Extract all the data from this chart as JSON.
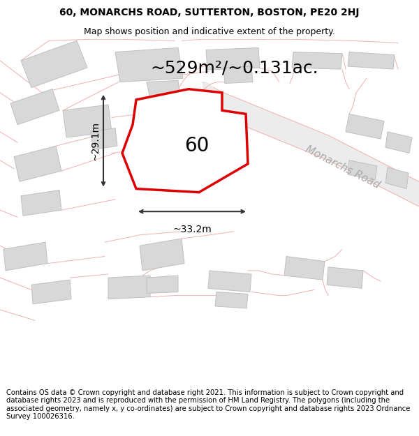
{
  "title_line1": "60, MONARCHS ROAD, SUTTERTON, BOSTON, PE20 2HJ",
  "title_line2": "Map shows position and indicative extent of the property.",
  "footer_text": "Contains OS data © Crown copyright and database right 2021. This information is subject to Crown copyright and database rights 2023 and is reproduced with the permission of HM Land Registry. The polygons (including the associated geometry, namely x, y co-ordinates) are subject to Crown copyright and database rights 2023 Ordnance Survey 100026316.",
  "area_label": "~529m²/~0.131ac.",
  "width_label": "~33.2m",
  "height_label": "~29.1m",
  "number_label": "60",
  "monarchs_road_label": "Monarchs Road",
  "plot_border_color": "#dd0000",
  "building_fill_color": "#d8d8d8",
  "building_edge_color": "#c0c0c0",
  "road_line_color": "#f0b0b0",
  "road_fill_color": "#ececec",
  "map_bg_color": "#f8f5f5",
  "dim_line_color": "#333333",
  "title_fontsize": 10,
  "subtitle_fontsize": 9,
  "footer_fontsize": 7.2,
  "area_fontsize": 18,
  "dim_fontsize": 10,
  "number_fontsize": 20,
  "road_label_fontsize": 11
}
